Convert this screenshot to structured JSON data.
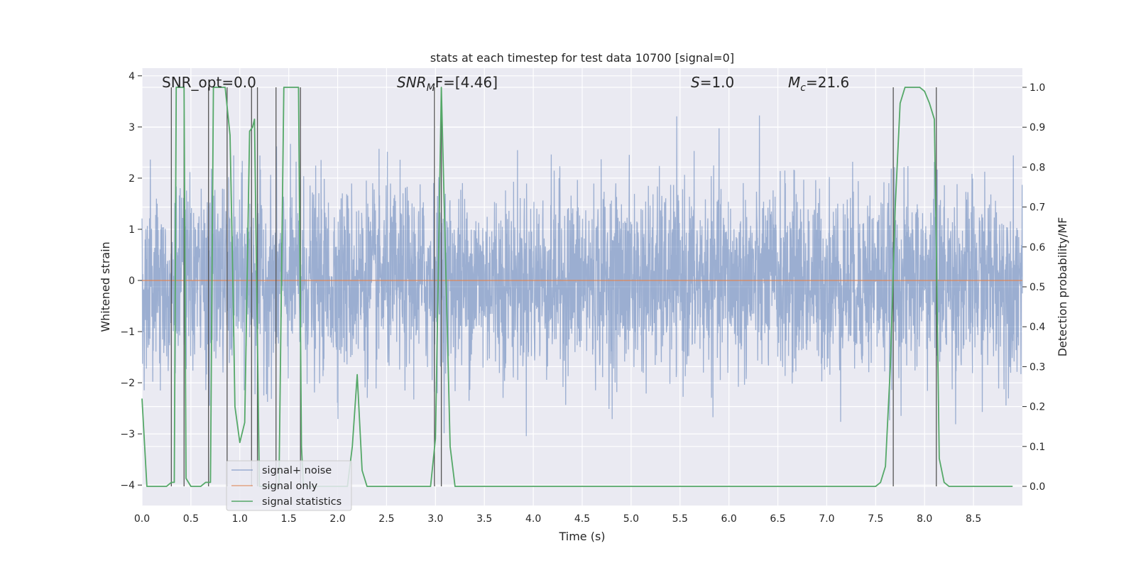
{
  "chart_data": {
    "type": "line",
    "title": "stats at each timestep for test data 10700 [signal=0]",
    "xlabel": "Time (s)",
    "ylabel": "Whitened strain",
    "y2label": "Detection probability/MF",
    "xlim": [
      0,
      9.0
    ],
    "ylim": [
      -4.4,
      4.15
    ],
    "y2lim": [
      -0.048,
      1.048
    ],
    "grid": true,
    "legend_position": "lower-left",
    "x_ticks": [
      "0.0",
      "0.5",
      "1.0",
      "1.5",
      "2.0",
      "2.5",
      "3.0",
      "3.5",
      "4.0",
      "4.5",
      "5.0",
      "5.5",
      "6.0",
      "6.5",
      "7.0",
      "7.5",
      "8.0",
      "8.5"
    ],
    "y_ticks": [
      "4",
      "3",
      "2",
      "1",
      "0",
      "−1",
      "−2",
      "−3",
      "−4"
    ],
    "y2_ticks": [
      "1.0",
      "0.9",
      "0.8",
      "0.7",
      "0.6",
      "0.5",
      "0.4",
      "0.3",
      "0.2",
      "0.1",
      "0.0"
    ],
    "annotations": {
      "snr_opt": "SNR_opt=0.0",
      "snr_mf_main": "SNR",
      "snr_mf_sub": "M",
      "snr_mf_rest": "F=[4.46]",
      "s_main": "S",
      "s_rest": "=1.0",
      "mc_main": "M",
      "mc_sub": "c",
      "mc_rest": "=21.6"
    },
    "series": [
      {
        "name": "signal+ noise",
        "color": "#4c72b0",
        "axis": "left",
        "note_sampling": "dense whitened noise, roughly Gaussian with sigma ~0.9 over 0–9 s",
        "envelope_abs_max": 3.9,
        "sigma": 0.9
      },
      {
        "name": "signal only",
        "color": "#dd8452",
        "axis": "left",
        "x": [
          0,
          9.0
        ],
        "y": [
          0,
          0
        ]
      },
      {
        "name": "signal statistics",
        "color": "#55a868",
        "axis": "right",
        "x": [
          0.0,
          0.05,
          0.1,
          0.15,
          0.2,
          0.25,
          0.3,
          0.33,
          0.35,
          0.4,
          0.43,
          0.45,
          0.5,
          0.55,
          0.6,
          0.65,
          0.7,
          0.73,
          0.75,
          0.8,
          0.85,
          0.9,
          0.93,
          0.95,
          1.0,
          1.05,
          1.1,
          1.13,
          1.15,
          1.2,
          1.25,
          1.3,
          1.35,
          1.4,
          1.45,
          1.5,
          1.55,
          1.6,
          1.63,
          1.65,
          1.7,
          1.75,
          1.8,
          1.85,
          1.9,
          1.95,
          2.0,
          2.05,
          2.1,
          2.15,
          2.2,
          2.25,
          2.3,
          2.35,
          2.4,
          2.5,
          2.6,
          2.7,
          2.8,
          2.9,
          2.95,
          3.0,
          3.03,
          3.06,
          3.1,
          3.15,
          3.2,
          3.3,
          3.5,
          4.0,
          5.0,
          6.0,
          7.0,
          7.5,
          7.55,
          7.6,
          7.65,
          7.7,
          7.75,
          7.8,
          7.85,
          7.9,
          7.95,
          8.0,
          8.05,
          8.1,
          8.12,
          8.15,
          8.2,
          8.25,
          8.3,
          8.4,
          8.6,
          8.9
        ],
        "y": [
          0.22,
          0.0,
          0.0,
          0.0,
          0.0,
          0.0,
          0.01,
          0.01,
          1.0,
          1.0,
          1.0,
          0.02,
          0.0,
          0.0,
          0.0,
          0.01,
          0.01,
          1.0,
          1.0,
          1.0,
          1.0,
          0.88,
          0.5,
          0.2,
          0.11,
          0.16,
          0.89,
          0.9,
          0.92,
          0.0,
          0.0,
          0.0,
          0.0,
          0.0,
          1.0,
          1.0,
          1.0,
          1.0,
          0.1,
          0.0,
          0.0,
          0.0,
          0.0,
          0.0,
          0.0,
          0.0,
          0.0,
          0.0,
          0.0,
          0.1,
          0.28,
          0.04,
          0.0,
          0.0,
          0.0,
          0.0,
          0.0,
          0.0,
          0.0,
          0.0,
          0.0,
          0.12,
          0.55,
          1.0,
          0.6,
          0.1,
          0.0,
          0.0,
          0.0,
          0.0,
          0.0,
          0.0,
          0.0,
          0.0,
          0.01,
          0.05,
          0.3,
          0.7,
          0.96,
          1.0,
          1.0,
          1.0,
          1.0,
          0.99,
          0.96,
          0.92,
          0.6,
          0.07,
          0.01,
          0.0,
          0.0,
          0.0,
          0.0,
          0.0
        ]
      }
    ],
    "vlines": [
      0.3,
      0.43,
      0.68,
      0.87,
      1.12,
      1.18,
      1.37,
      1.62,
      2.99,
      3.06,
      7.68,
      8.12
    ]
  }
}
